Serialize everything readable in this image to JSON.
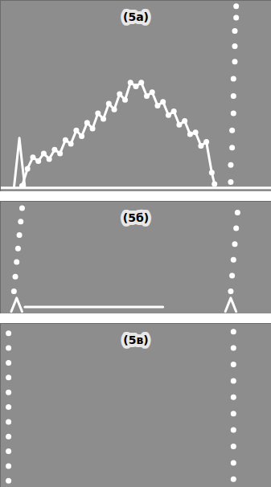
{
  "chart_data": [
    {
      "type": "line",
      "title": "(5а)",
      "tick_labels": false,
      "xlim": [
        0,
        100
      ],
      "ylim": [
        0,
        100
      ],
      "series": [
        {
          "type": "line",
          "color": "#ffffff",
          "x": [
            0,
            100
          ],
          "values": [
            2,
            2
          ]
        },
        {
          "type": "line",
          "color": "#ffffff",
          "x": [
            5,
            6,
            7,
            8,
            9
          ],
          "values": [
            2,
            15,
            28,
            15,
            3
          ]
        },
        {
          "type": "line",
          "color": "#ffffff",
          "marker": "circle",
          "x": [
            8,
            10,
            12,
            14,
            16,
            18,
            20,
            22,
            24,
            26,
            28,
            30,
            32,
            34,
            36,
            38,
            40,
            42,
            44,
            46,
            48,
            50,
            52,
            54,
            56,
            58,
            60,
            62,
            64,
            66,
            68,
            70,
            72,
            74,
            76,
            78,
            79
          ],
          "values": [
            3,
            12,
            18,
            16,
            20,
            17,
            22,
            20,
            27,
            25,
            32,
            29,
            36,
            33,
            41,
            38,
            46,
            43,
            51,
            48,
            57,
            55,
            57,
            50,
            52,
            45,
            47,
            40,
            42,
            35,
            37,
            30,
            31,
            24,
            26,
            10,
            4
          ]
        },
        {
          "type": "scatter",
          "color": "#ffffff",
          "marker": "circle",
          "x": [
            85,
            85,
            85.5,
            85.5,
            86,
            86,
            86,
            86.5,
            86.5,
            86.5,
            87,
            87
          ],
          "values": [
            5,
            14,
            23,
            32,
            41,
            50,
            59,
            68,
            76,
            84,
            91,
            97
          ]
        }
      ]
    },
    {
      "type": "line",
      "title": "(5б)",
      "tick_labels": false,
      "xlim": [
        0,
        100
      ],
      "ylim": [
        0,
        100
      ],
      "series": [
        {
          "type": "line",
          "color": "#ffffff",
          "x": [
            9,
            60
          ],
          "values": [
            6,
            6
          ]
        },
        {
          "type": "line",
          "color": "#ffffff",
          "x": [
            4,
            6,
            8
          ],
          "values": [
            2,
            14,
            2
          ]
        },
        {
          "type": "line",
          "color": "#ffffff",
          "x": [
            83,
            85,
            87
          ],
          "values": [
            2,
            14,
            2
          ]
        },
        {
          "type": "scatter",
          "color": "#ffffff",
          "marker": "circle",
          "x": [
            5,
            5.5,
            6,
            6.5,
            7,
            7.5,
            8
          ],
          "values": [
            20,
            33,
            46,
            58,
            70,
            82,
            94
          ]
        },
        {
          "type": "scatter",
          "color": "#ffffff",
          "marker": "circle",
          "x": [
            85,
            85.5,
            86,
            86.5,
            87,
            87.5
          ],
          "values": [
            20,
            34,
            48,
            62,
            76,
            90
          ]
        }
      ]
    },
    {
      "type": "line",
      "title": "(5в)",
      "tick_labels": false,
      "xlim": [
        0,
        100
      ],
      "ylim": [
        0,
        100
      ],
      "series": [
        {
          "type": "scatter",
          "color": "#ffffff",
          "marker": "circle",
          "x": [
            3,
            3,
            3,
            3,
            3,
            3,
            3,
            3,
            3,
            3,
            3
          ],
          "values": [
            4,
            13,
            22,
            31,
            40,
            49,
            58,
            67,
            76,
            85,
            94
          ]
        },
        {
          "type": "scatter",
          "color": "#ffffff",
          "marker": "circle",
          "x": [
            86,
            86,
            86,
            86,
            86,
            86,
            86,
            86,
            86,
            86
          ],
          "values": [
            5,
            15,
            25,
            35,
            45,
            55,
            65,
            75,
            85,
            95
          ]
        }
      ]
    }
  ]
}
